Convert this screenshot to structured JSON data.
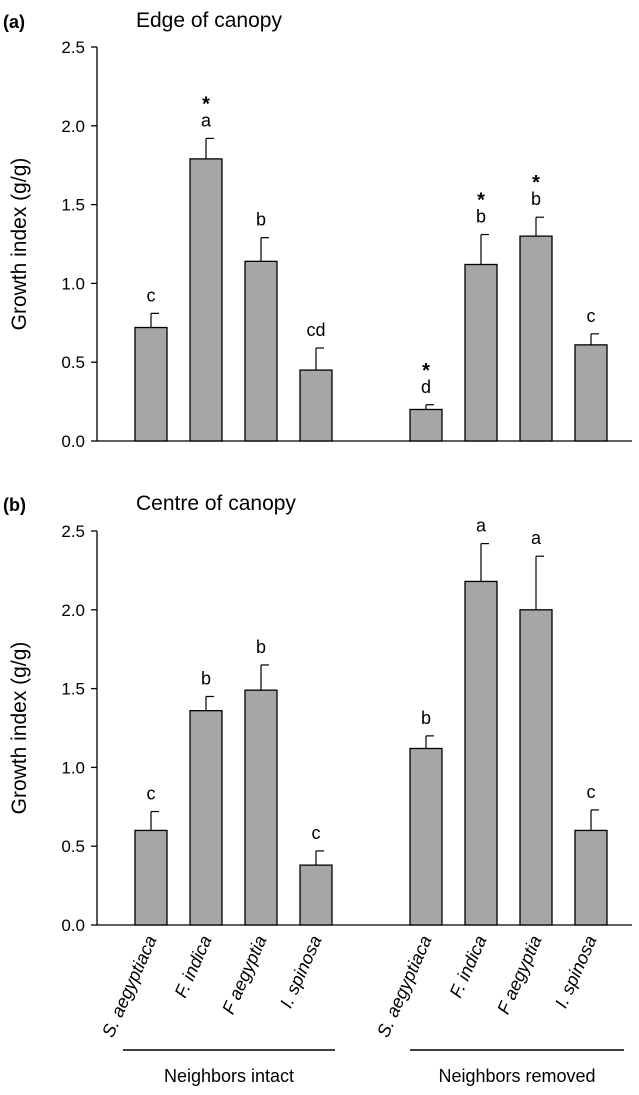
{
  "shared": {
    "ylabel": "Growth index (g/g)",
    "bar_color": "#a6a6a6",
    "categories": [
      {
        "abbr": "S.",
        "name": "aegyptiaca"
      },
      {
        "abbr": "F.",
        "name": "indica"
      },
      {
        "abbr": "F",
        "name": "aegyptia"
      },
      {
        "abbr": "I.",
        "name": "spinosa"
      }
    ],
    "groups": [
      "Neighbors intact",
      "Neighbors removed"
    ]
  },
  "chart_data": [
    {
      "type": "bar",
      "panel": "(a)",
      "title": "Edge of canopy",
      "ylim": [
        0,
        2.5
      ],
      "yticks": [
        "0.0",
        "0.5",
        "1.0",
        "1.5",
        "2.0",
        "2.5"
      ],
      "series": [
        {
          "group": "Neighbors intact",
          "values": [
            0.72,
            1.79,
            1.14,
            0.45
          ],
          "errors": [
            0.09,
            0.13,
            0.15,
            0.14
          ],
          "letters": [
            "c",
            "a",
            "b",
            "cd"
          ],
          "stars": [
            false,
            true,
            false,
            false
          ]
        },
        {
          "group": "Neighbors removed",
          "values": [
            0.2,
            1.12,
            1.3,
            0.61
          ],
          "errors": [
            0.03,
            0.19,
            0.12,
            0.07
          ],
          "letters": [
            "d",
            "b",
            "b",
            "c"
          ],
          "stars": [
            true,
            true,
            true,
            false
          ]
        }
      ]
    },
    {
      "type": "bar",
      "panel": "(b)",
      "title": "Centre of canopy",
      "ylim": [
        0,
        2.5
      ],
      "yticks": [
        "0.0",
        "0.5",
        "1.0",
        "1.5",
        "2.0",
        "2.5"
      ],
      "series": [
        {
          "group": "Neighbors intact",
          "values": [
            0.6,
            1.36,
            1.49,
            0.38
          ],
          "errors": [
            0.12,
            0.09,
            0.16,
            0.09
          ],
          "letters": [
            "c",
            "b",
            "b",
            "c"
          ],
          "stars": [
            false,
            false,
            false,
            false
          ]
        },
        {
          "group": "Neighbors removed",
          "values": [
            1.12,
            2.18,
            2.0,
            0.6
          ],
          "errors": [
            0.08,
            0.24,
            0.34,
            0.13
          ],
          "letters": [
            "b",
            "a",
            "a",
            "c"
          ],
          "stars": [
            false,
            false,
            false,
            false
          ]
        }
      ]
    }
  ]
}
